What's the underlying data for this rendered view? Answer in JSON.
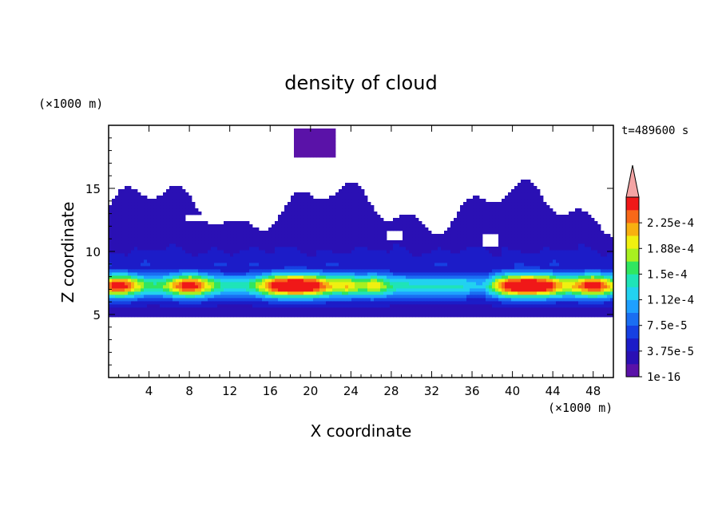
{
  "chart_data": {
    "type": "heatmap",
    "title": "density of cloud",
    "xlabel": "X coordinate",
    "ylabel": "Z coordinate",
    "x_unit": "(×1000 m)",
    "y_unit": "(×1000 m)",
    "time_label": "t=489600 s",
    "xlim": [
      0,
      50
    ],
    "ylim": [
      0,
      20
    ],
    "x_ticks": [
      4,
      8,
      12,
      16,
      20,
      24,
      28,
      32,
      36,
      40,
      44,
      48
    ],
    "y_ticks": [
      5,
      10,
      15
    ],
    "colorbar": {
      "levels": [
        1e-16,
        1.875e-05,
        3.75e-05,
        5.625e-05,
        7.5e-05,
        9.375e-05,
        0.0001125,
        0.00013125,
        0.00015,
        0.00016875,
        0.0001875,
        0.00020625,
        0.000225,
        0.00024375
      ],
      "labels": [
        "1e-16",
        "3.75e-5",
        "7.5e-5",
        "1.12e-4",
        "1.5e-4",
        "1.88e-4",
        "2.25e-4"
      ],
      "colors": [
        "#5a12a8",
        "#2a10b4",
        "#1c1cc8",
        "#1640e2",
        "#1a6ef2",
        "#1ea0ff",
        "#22d2f0",
        "#1fe4b8",
        "#30e660",
        "#a8f020",
        "#f0f010",
        "#f8b010",
        "#f86818",
        "#f01818"
      ],
      "overflow_color": "#f4a4a4"
    },
    "field_description": {
      "main_layer_z_range": [
        4.8,
        9.0
      ],
      "core_z_range": [
        6.0,
        8.5
      ],
      "upper_cloud_z_range": [
        9.0,
        16.0
      ],
      "isolated_cell": {
        "x_range": [
          18.5,
          22.5
        ],
        "z_range": [
          17.5,
          19.8
        ]
      },
      "max_value_locations_x": [
        1,
        8,
        17,
        20,
        25,
        40,
        43,
        48
      ]
    }
  }
}
